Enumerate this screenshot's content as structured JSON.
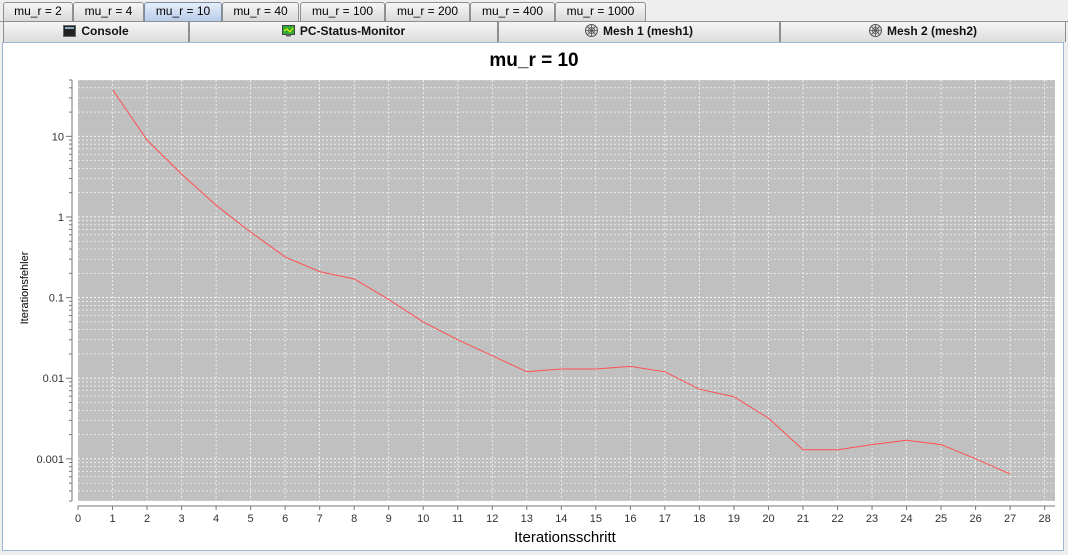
{
  "tabs": [
    {
      "label": "mu_r = 2",
      "active": false
    },
    {
      "label": "mu_r = 4",
      "active": false
    },
    {
      "label": "mu_r = 10",
      "active": true
    },
    {
      "label": "mu_r = 40",
      "active": false
    },
    {
      "label": "mu_r = 100",
      "active": false
    },
    {
      "label": "mu_r = 200",
      "active": false
    },
    {
      "label": "mu_r = 400",
      "active": false
    },
    {
      "label": "mu_r = 1000",
      "active": false
    }
  ],
  "views": [
    {
      "label": "Console",
      "icon": "console-icon"
    },
    {
      "label": "PC-Status-Monitor",
      "icon": "monitor-icon"
    },
    {
      "label": "Mesh 1 (mesh1)",
      "icon": "mesh-icon"
    },
    {
      "label": "Mesh 2 (mesh2)",
      "icon": "mesh-icon"
    }
  ],
  "chart_data": {
    "type": "line",
    "title": "mu_r = 10",
    "xlabel": "Iterationsschritt",
    "ylabel": "Iterationsfehler",
    "y_scale": "log",
    "xlim": [
      0,
      28.3
    ],
    "ylim": [
      0.0003,
      50
    ],
    "x_ticks": [
      0,
      1,
      2,
      3,
      4,
      5,
      6,
      7,
      8,
      9,
      10,
      11,
      12,
      13,
      14,
      15,
      16,
      17,
      18,
      19,
      20,
      21,
      22,
      23,
      24,
      25,
      26,
      27,
      28
    ],
    "y_ticks": [
      {
        "value": 0.001,
        "label": "0.001"
      },
      {
        "value": 0.01,
        "label": "0.01"
      },
      {
        "value": 0.1,
        "label": "0.1"
      },
      {
        "value": 1,
        "label": "1"
      },
      {
        "value": 10,
        "label": "10"
      }
    ],
    "grid": true,
    "background": "#c0c0c0",
    "line_color": "#ff5050",
    "series": [
      {
        "x": [
          1,
          2,
          3,
          4,
          5,
          6,
          7,
          8,
          9,
          10,
          11,
          12,
          13,
          14,
          15,
          16,
          17,
          18,
          19,
          20,
          21,
          22,
          23,
          24,
          25,
          26,
          27
        ],
        "y": [
          38,
          9,
          3.4,
          1.4,
          0.65,
          0.32,
          0.21,
          0.17,
          0.095,
          0.05,
          0.03,
          0.019,
          0.012,
          0.013,
          0.013,
          0.014,
          0.012,
          0.0073,
          0.0059,
          0.0032,
          0.0013,
          0.0013,
          0.0015,
          0.0017,
          0.0015,
          0.001,
          0.00065
        ]
      }
    ]
  }
}
